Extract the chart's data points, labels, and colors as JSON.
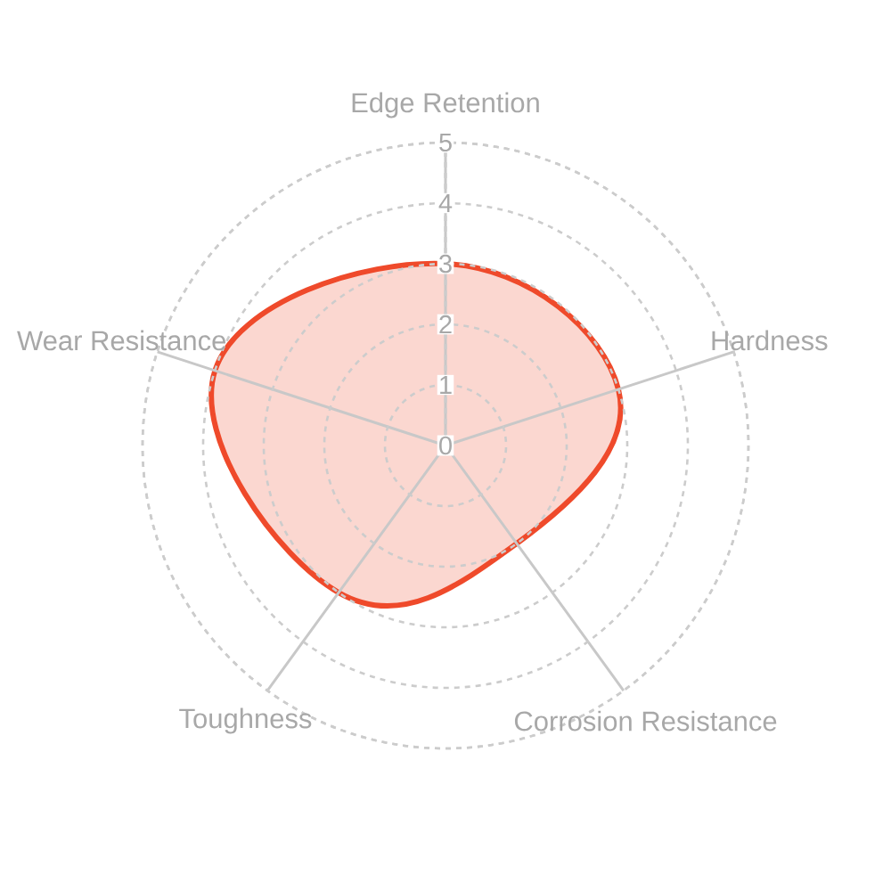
{
  "chart_data": {
    "type": "radar",
    "categories": [
      "Edge Retention",
      "Hardness",
      "Corrosion Resistance",
      "Toughness",
      "Wear Resistance"
    ],
    "series": [
      {
        "color": "#ef4a2b",
        "values": [
          3,
          3,
          2,
          3,
          4
        ]
      }
    ],
    "ylim": [
      0,
      5
    ],
    "yticks": [
      0,
      1,
      2,
      3,
      4,
      5
    ],
    "grid": true
  }
}
